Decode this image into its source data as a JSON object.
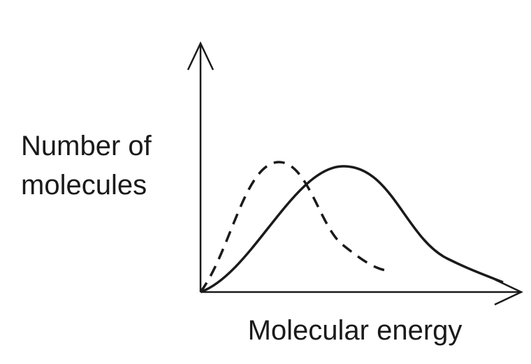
{
  "y_axis_label_lines": [
    "Number of",
    "molecules"
  ],
  "x_axis_label": "Molecular energy"
}
